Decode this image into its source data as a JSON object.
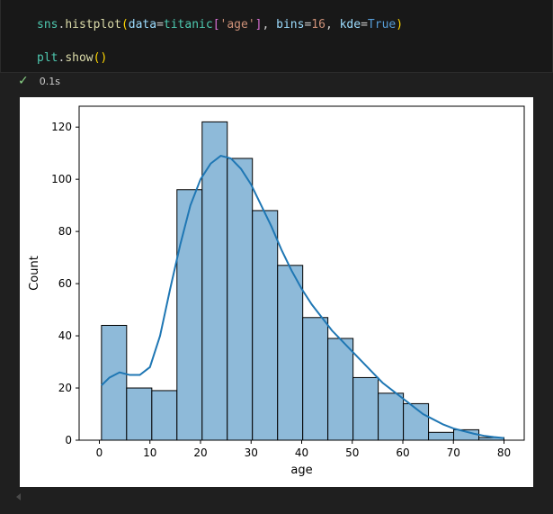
{
  "code": {
    "line1": [
      {
        "t": "sns",
        "c": "tok-var"
      },
      {
        "t": ".",
        "c": "tok-op"
      },
      {
        "t": "histplot",
        "c": "tok-fn"
      },
      {
        "t": "(",
        "c": "tok-p1"
      },
      {
        "t": "data",
        "c": "tok-param"
      },
      {
        "t": "=",
        "c": "tok-op"
      },
      {
        "t": "titanic",
        "c": "tok-var"
      },
      {
        "t": "[",
        "c": "tok-p2"
      },
      {
        "t": "'age'",
        "c": "tok-str"
      },
      {
        "t": "]",
        "c": "tok-p2"
      },
      {
        "t": ", ",
        "c": "tok-op"
      },
      {
        "t": "bins",
        "c": "tok-param"
      },
      {
        "t": "=",
        "c": "tok-op"
      },
      {
        "t": "16",
        "c": "tok-str"
      },
      {
        "t": ", ",
        "c": "tok-op"
      },
      {
        "t": "kde",
        "c": "tok-param"
      },
      {
        "t": "=",
        "c": "tok-op"
      },
      {
        "t": "True",
        "c": "tok-kw"
      },
      {
        "t": ")",
        "c": "tok-p1"
      }
    ],
    "line2": [
      {
        "t": "plt",
        "c": "tok-var"
      },
      {
        "t": ".",
        "c": "tok-op"
      },
      {
        "t": "show",
        "c": "tok-fn"
      },
      {
        "t": "()",
        "c": "tok-p1"
      }
    ]
  },
  "status": {
    "icon": "check-icon",
    "duration": "0.1s",
    "check_color": "#89d185"
  },
  "chart_data": {
    "type": "bar",
    "xlabel": "age",
    "ylabel": "Count",
    "xlim": [
      -4,
      84
    ],
    "ylim": [
      0,
      128
    ],
    "xticks": [
      0,
      10,
      20,
      30,
      40,
      50,
      60,
      70,
      80
    ],
    "yticks": [
      0,
      20,
      40,
      60,
      80,
      100,
      120
    ],
    "bin_edges": [
      0.42,
      5.39,
      10.37,
      15.34,
      20.32,
      25.29,
      30.26,
      35.24,
      40.21,
      45.18,
      50.16,
      55.13,
      60.11,
      65.08,
      70.05,
      75.03,
      80.0
    ],
    "values": [
      44,
      20,
      19,
      96,
      122,
      108,
      88,
      67,
      47,
      39,
      24,
      18,
      14,
      3,
      4,
      1
    ],
    "kde": {
      "x": [
        0.42,
        2,
        4,
        6,
        8,
        10,
        12,
        14,
        16,
        18,
        20,
        22,
        24,
        26,
        28,
        30,
        32,
        34,
        36,
        38,
        40,
        42,
        44,
        46,
        48,
        50,
        52,
        54,
        56,
        58,
        60,
        62,
        64,
        66,
        68,
        70,
        72,
        74,
        76,
        78,
        80
      ],
      "y": [
        21,
        24,
        26,
        25,
        25,
        28,
        40,
        58,
        75,
        90,
        100,
        106,
        109,
        108,
        104,
        98,
        90,
        82,
        73,
        65,
        58,
        52,
        47,
        42,
        38,
        34,
        30,
        26,
        22,
        19,
        16,
        13,
        10,
        8,
        6,
        4.5,
        3.5,
        2.5,
        1.7,
        1.2,
        0.8
      ]
    },
    "bar_fill": "#8ebad9",
    "bar_stroke": "#000000",
    "kde_color": "#1f77b4",
    "grid": false
  }
}
